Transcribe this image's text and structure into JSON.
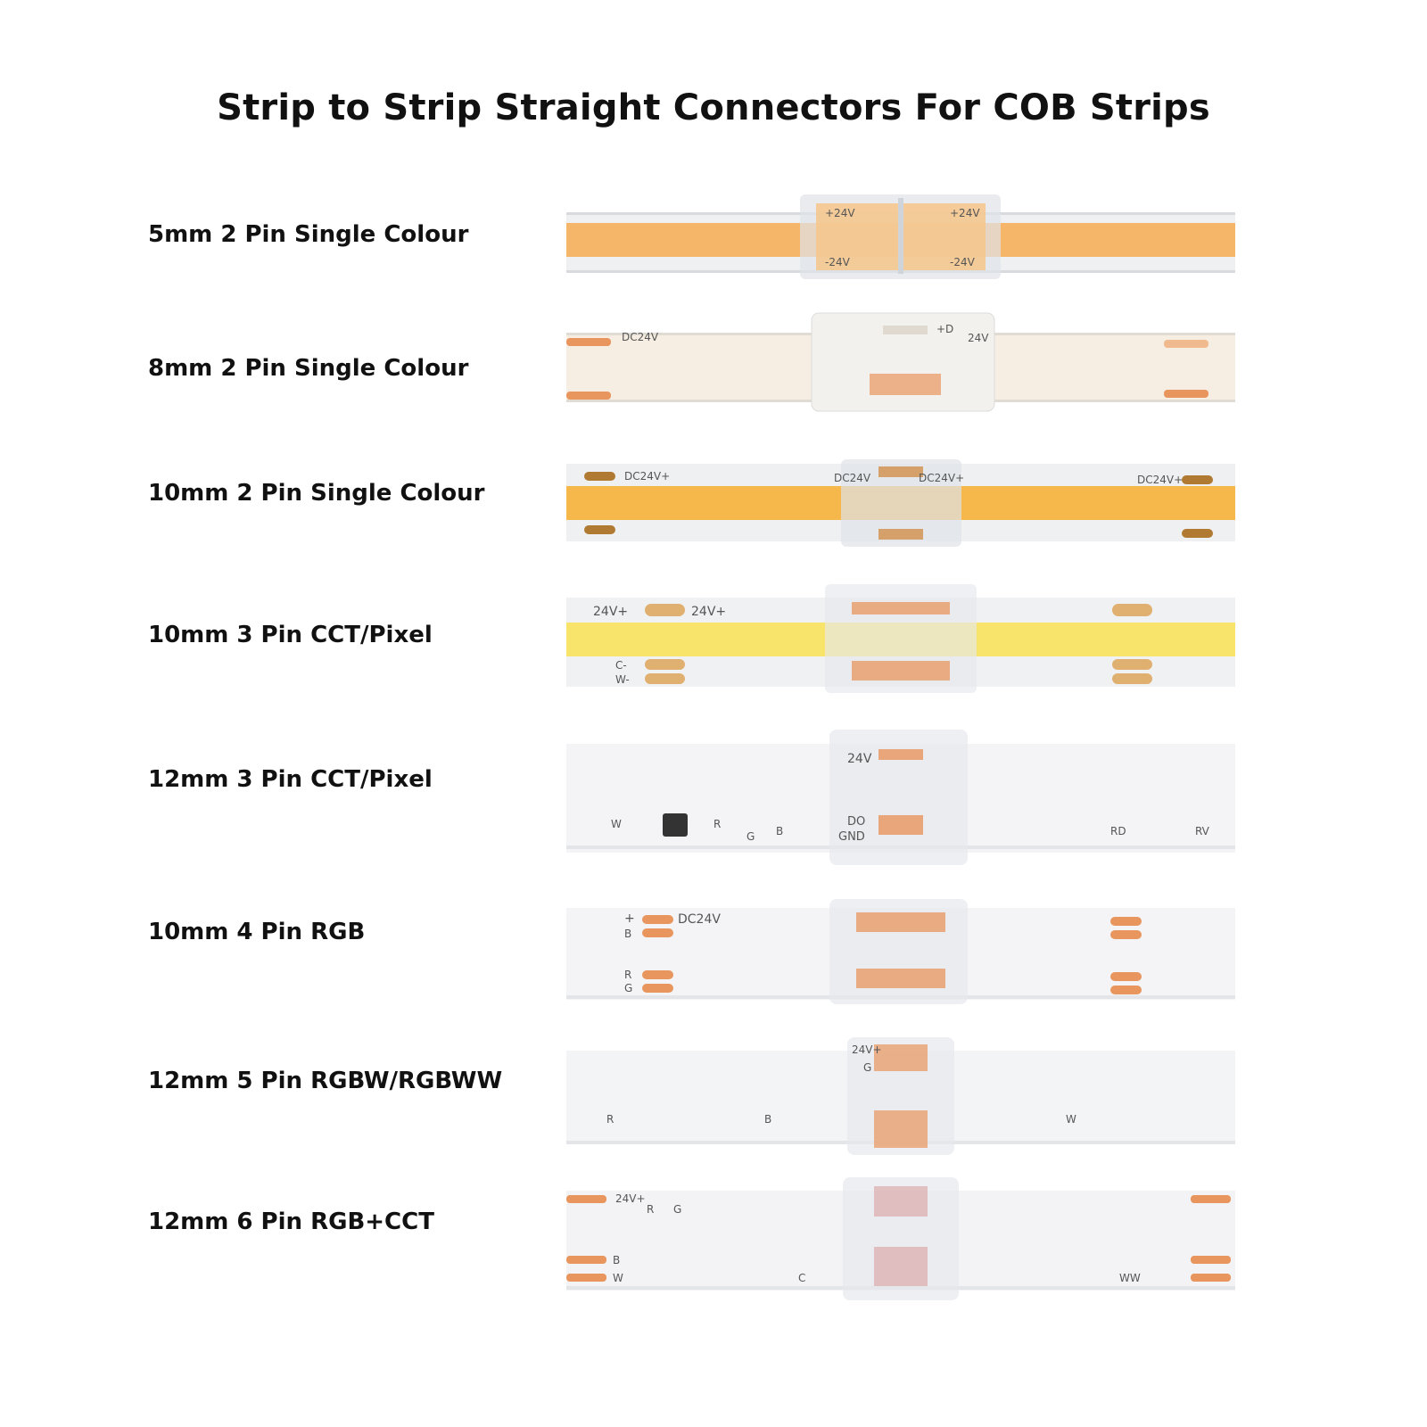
{
  "title": "Strip to Strip Straight Connectors For COB Strips",
  "rows": [
    {
      "label": "5mm 2 Pin Single Colour",
      "strip_color": "#f5b66a",
      "marks": {
        "top_left": "",
        "top_right": "",
        "conn_top_l": "+24V",
        "conn_top_r": "+24V",
        "conn_bot_l": "-24V",
        "conn_bot_r": "-24V"
      }
    },
    {
      "label": "8mm 2 Pin Single Colour",
      "strip_color": "#f6eee2",
      "marks": {
        "top_left": "DC24V",
        "top_right": "+D",
        "extra": "24V"
      }
    },
    {
      "label": "10mm 2 Pin Single Colour",
      "strip_color": "#f6b84a",
      "marks": {
        "top_left": "DC24V+",
        "top_right": "DC24V+",
        "conn_l": "DC24V",
        "conn_r": "DC24V+"
      }
    },
    {
      "label": "10mm 3 Pin CCT/Pixel",
      "strip_color": "#f8e46a",
      "marks": {
        "v1": "24V+",
        "v2": "24V+",
        "c": "C-",
        "w": "W-"
      }
    },
    {
      "label": "12mm 3 Pin CCT/Pixel",
      "strip_color": "#f4f4f6",
      "marks": {
        "v": "24V",
        "do": "DO",
        "gnd": "GND",
        "rd": "RD",
        "rv": "RV",
        "w": "W",
        "r": "R",
        "g": "G",
        "b": "B"
      }
    },
    {
      "label": "10mm 4 Pin RGB",
      "strip_color": "#f4f4f6",
      "marks": {
        "plus": "+",
        "dc": "DC24V",
        "b": "B",
        "r": "R",
        "g": "G"
      }
    },
    {
      "label": "12mm 5 Pin RGBW/RGBWW",
      "strip_color": "#f3f4f6",
      "marks": {
        "v": "24V+",
        "g": "G",
        "r": "R",
        "b": "B",
        "w": "W"
      }
    },
    {
      "label": "12mm 6 Pin RGB+CCT",
      "strip_color": "#f3f3f5",
      "marks": {
        "v": "24V+",
        "r": "R",
        "g": "G",
        "b": "B",
        "c": "C",
        "w": "W",
        "ww": "WW"
      }
    }
  ],
  "colors": {
    "copper": "#e8955e",
    "connector": "#e9ecf0",
    "strip_edge": "#d8dadd"
  }
}
